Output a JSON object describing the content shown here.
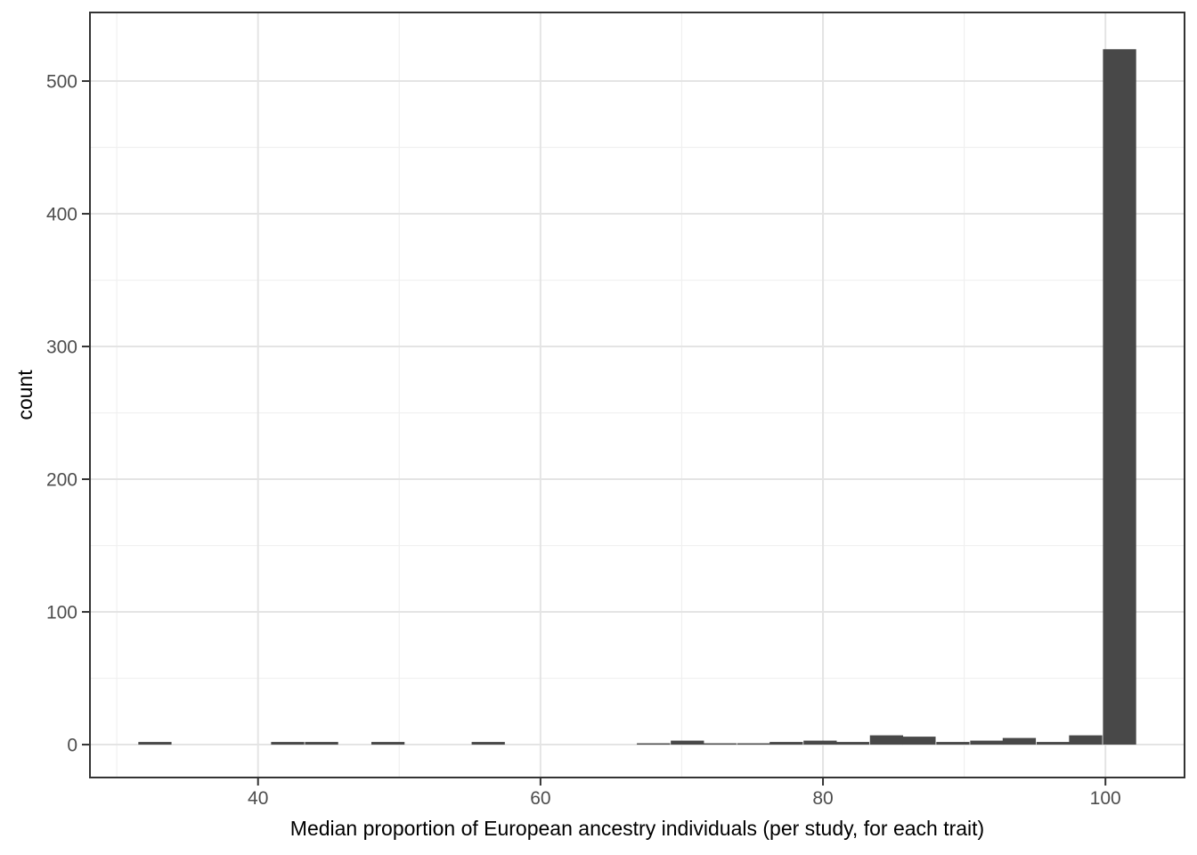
{
  "figure": {
    "kind": "ggplot-style histogram",
    "background_color": "#FFFFFF"
  },
  "style": {
    "bar_color": "#484848",
    "grid_major_color": "#E4E4E4",
    "grid_minor_color": "#F0F0F0",
    "panel_border_color": "#333333",
    "tick_mark_color": "#333333",
    "tick_label_color": "#4D4D4D",
    "axis_title_color": "#000000"
  },
  "chart_data": {
    "type": "bar",
    "subtype": "histogram",
    "title": "",
    "xlabel": "Median proportion of European ancestry individuals (per study, for each trait)",
    "ylabel": "count",
    "x_ticks": [
      40,
      60,
      80,
      100
    ],
    "x_minor_ticks": [
      30,
      50,
      70,
      90
    ],
    "y_ticks": [
      0,
      100,
      200,
      300,
      400,
      500
    ],
    "y_minor_ticks": [
      50,
      150,
      250,
      350,
      450
    ],
    "x_domain": [
      28.1,
      105.6
    ],
    "y_domain": [
      -24.8,
      551.7
    ],
    "ylim_data": [
      0,
      524
    ],
    "binwidth": 2.35,
    "grid": "on",
    "legend": "none",
    "bins": [
      {
        "x": 32.7,
        "count": 2
      },
      {
        "x": 42.1,
        "count": 2
      },
      {
        "x": 44.5,
        "count": 2
      },
      {
        "x": 49.2,
        "count": 2
      },
      {
        "x": 56.3,
        "count": 2
      },
      {
        "x": 68.0,
        "count": 1
      },
      {
        "x": 70.4,
        "count": 3
      },
      {
        "x": 72.7,
        "count": 1
      },
      {
        "x": 75.1,
        "count": 1
      },
      {
        "x": 77.4,
        "count": 2
      },
      {
        "x": 79.8,
        "count": 3
      },
      {
        "x": 82.1,
        "count": 2
      },
      {
        "x": 84.5,
        "count": 7
      },
      {
        "x": 86.8,
        "count": 6
      },
      {
        "x": 89.2,
        "count": 2
      },
      {
        "x": 91.6,
        "count": 3
      },
      {
        "x": 93.9,
        "count": 5
      },
      {
        "x": 96.3,
        "count": 2
      },
      {
        "x": 98.6,
        "count": 7
      },
      {
        "x": 101.0,
        "count": 524
      }
    ]
  }
}
